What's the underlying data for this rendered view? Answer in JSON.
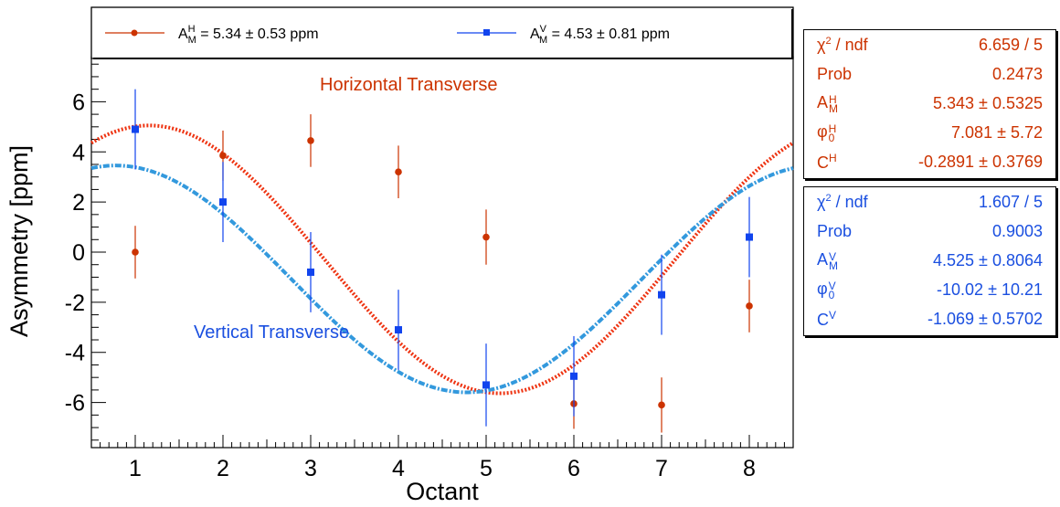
{
  "legend": {
    "horizontal_text": "A_M^H = 5.34 ± 0.53 ppm",
    "vertical_text": "A_M^V = 4.53 ± 0.81 ppm"
  },
  "colors": {
    "horizontal": "#cc3300",
    "horizontal_fit": "#ee3311",
    "vertical": "#1144ee",
    "vertical_fit": "#3399dd"
  },
  "stats_horizontal": [
    {
      "label": "χ² / ndf",
      "value": "6.659 / 5"
    },
    {
      "label": "Prob",
      "value": "0.2473"
    },
    {
      "label": "A_M^H",
      "value": "5.343 ± 0.5325"
    },
    {
      "label": "φ_0^H",
      "value": "7.081 ±  5.72"
    },
    {
      "label": "C^H",
      "value": "-0.2891 ± 0.3769"
    }
  ],
  "stats_vertical": [
    {
      "label": "χ² / ndf",
      "value": "1.607 / 5"
    },
    {
      "label": "Prob",
      "value": "0.9003"
    },
    {
      "label": "A_M^V",
      "value": "4.525 ± 0.8064"
    },
    {
      "label": "φ_0^V",
      "value": "-10.02 ± 10.21"
    },
    {
      "label": "C^V",
      "value": "-1.069 ± 0.5702"
    }
  ],
  "chart_data": {
    "type": "scatter",
    "xlabel": "Octant",
    "ylabel": "Asymmetry [ppm]",
    "xlim": [
      0.5,
      8.5
    ],
    "ylim": [
      -7.8,
      7.8
    ],
    "xticks": [
      1,
      2,
      3,
      4,
      5,
      6,
      7,
      8
    ],
    "yticks": [
      -6,
      -4,
      -2,
      0,
      2,
      4,
      6
    ],
    "annotations": [
      "Horizontal Transverse",
      "Vertical Transverse"
    ],
    "series": [
      {
        "name": "A_M^H = 5.34 ± 0.53 ppm",
        "x": [
          1,
          2,
          3,
          4,
          5,
          6,
          7,
          8
        ],
        "y": [
          0.0,
          3.85,
          4.45,
          3.2,
          0.6,
          -6.05,
          -6.1,
          -2.15
        ],
        "yerr": [
          1.05,
          1.0,
          1.05,
          1.05,
          1.1,
          1.0,
          1.1,
          1.05
        ]
      },
      {
        "name": "A_M^V = 4.53 ± 0.81 ppm",
        "x": [
          1,
          2,
          3,
          4,
          5,
          6,
          7,
          8
        ],
        "y": [
          4.9,
          2.0,
          -0.8,
          -3.1,
          -5.3,
          -4.95,
          -1.7,
          0.6
        ],
        "yerr": [
          1.6,
          1.6,
          1.6,
          1.6,
          1.65,
          1.6,
          1.6,
          1.6
        ]
      }
    ],
    "fits": [
      {
        "amplitude": 5.343,
        "phase_deg": 7.081,
        "offset": -0.2891
      },
      {
        "amplitude": 4.525,
        "phase_deg": -10.02,
        "offset": -1.069
      }
    ]
  }
}
